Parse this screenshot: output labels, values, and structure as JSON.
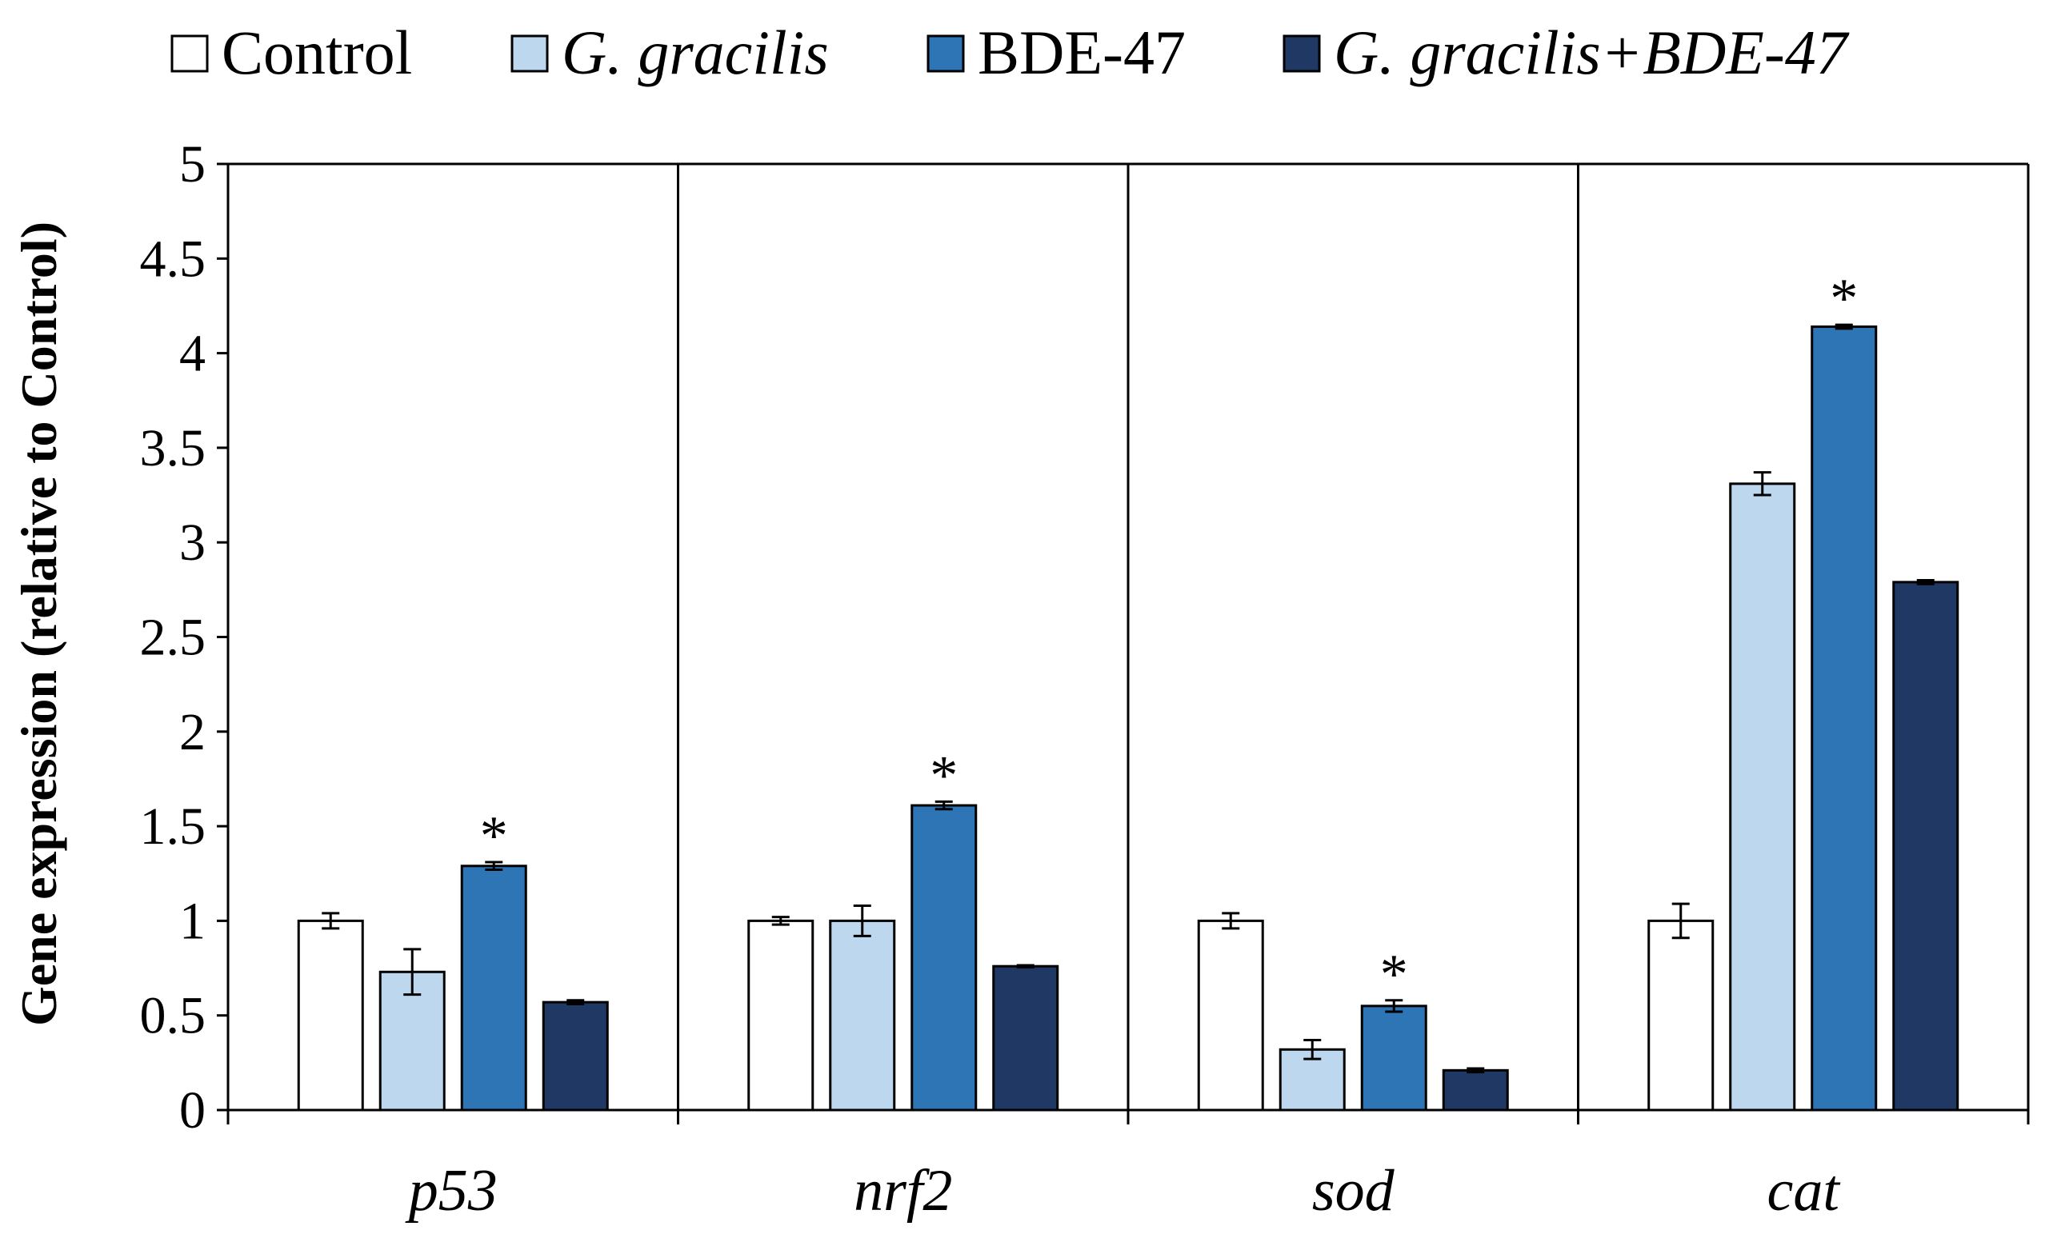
{
  "chart_data": {
    "type": "bar",
    "title": "",
    "xlabel": "",
    "ylabel": "Gene expression (relative to Control)",
    "ylim": [
      0,
      5
    ],
    "yticks": [
      0,
      0.5,
      1,
      1.5,
      2,
      2.5,
      3,
      3.5,
      4,
      4.5,
      5
    ],
    "ytick_labels": [
      "0",
      "0.5",
      "1",
      "1.5",
      "2",
      "2.5",
      "3",
      "3.5",
      "4",
      "4.5",
      "5"
    ],
    "grid": false,
    "legend_position": "top",
    "categories": [
      "p53",
      "nrf2",
      "sod",
      "cat"
    ],
    "significance_marker": "*",
    "series": [
      {
        "name": "Control",
        "italic": false,
        "color": "#ffffff",
        "values": [
          1.0,
          1.0,
          1.0,
          1.0
        ],
        "errors": [
          0.04,
          0.02,
          0.04,
          0.09
        ],
        "significant": [
          false,
          false,
          false,
          false
        ]
      },
      {
        "name": "G. gracilis",
        "italic": true,
        "color": "#bdd7ee",
        "values": [
          0.73,
          1.0,
          0.32,
          3.31
        ],
        "errors": [
          0.12,
          0.08,
          0.05,
          0.06
        ],
        "significant": [
          false,
          false,
          false,
          false
        ]
      },
      {
        "name": "BDE-47",
        "italic": false,
        "color": "#2e75b6",
        "values": [
          1.29,
          1.61,
          0.55,
          4.14
        ],
        "errors": [
          0.02,
          0.02,
          0.03,
          0.01
        ],
        "significant": [
          true,
          true,
          true,
          true
        ]
      },
      {
        "name": "G. gracilis+BDE-47",
        "italic": true,
        "color": "#203864",
        "values": [
          0.57,
          0.76,
          0.21,
          2.79
        ],
        "errors": [
          0.01,
          0.005,
          0.01,
          0.01
        ],
        "significant": [
          false,
          false,
          false,
          false
        ]
      }
    ]
  }
}
